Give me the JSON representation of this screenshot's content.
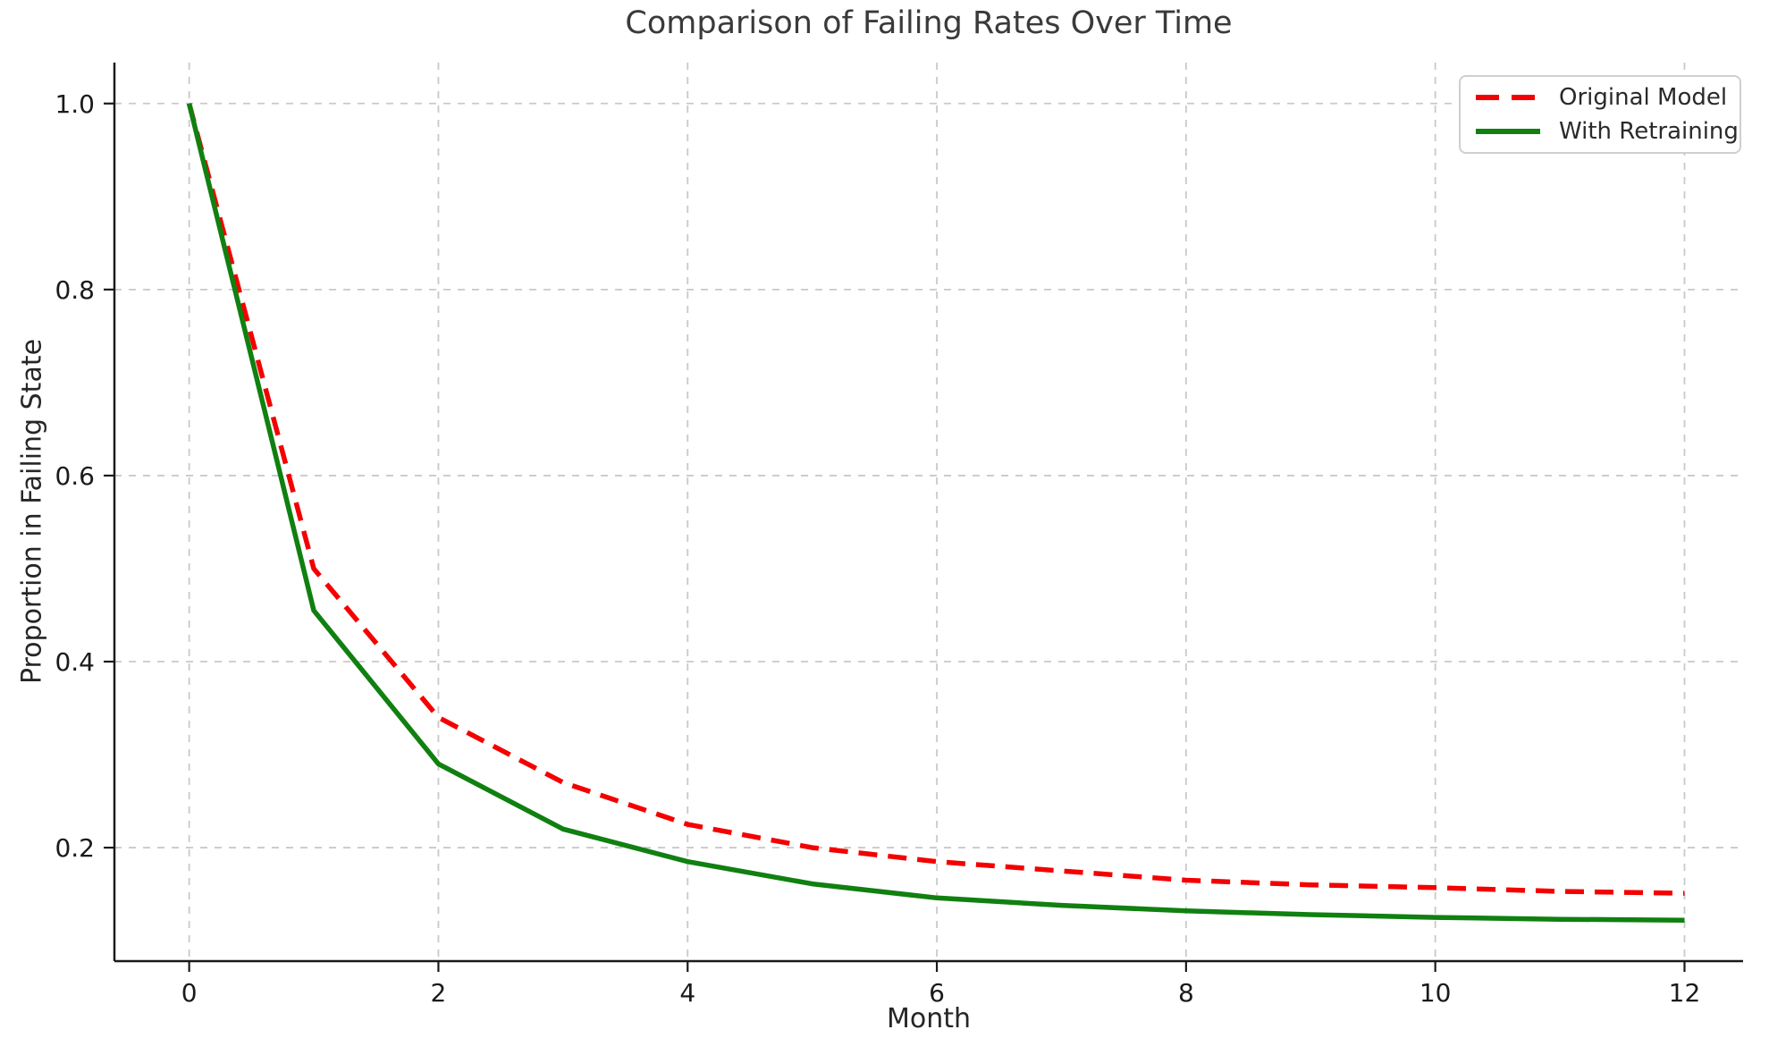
{
  "chart_data": {
    "type": "line",
    "title": "Comparison of Failing Rates Over Time",
    "xlabel": "Month",
    "ylabel": "Proportion in Failing State",
    "x": [
      0,
      1,
      2,
      3,
      4,
      5,
      6,
      7,
      8,
      9,
      10,
      11,
      12
    ],
    "series": [
      {
        "name": "Original Model",
        "color": "#f40000",
        "style": "dashed",
        "values": [
          1.0,
          0.5,
          0.34,
          0.27,
          0.225,
          0.2,
          0.185,
          0.175,
          0.165,
          0.16,
          0.157,
          0.153,
          0.151
        ]
      },
      {
        "name": "With Retraining",
        "color": "#108010",
        "style": "solid",
        "values": [
          1.0,
          0.455,
          0.29,
          0.22,
          0.185,
          0.161,
          0.146,
          0.138,
          0.132,
          0.128,
          0.125,
          0.123,
          0.122
        ]
      }
    ],
    "x_ticks": [
      0,
      2,
      4,
      6,
      8,
      10,
      12
    ],
    "x_tick_labels": [
      "0",
      "2",
      "4",
      "6",
      "8",
      "10",
      "12"
    ],
    "y_ticks": [
      0.2,
      0.4,
      0.6,
      0.8,
      1.0
    ],
    "y_tick_labels": [
      "0.2",
      "0.4",
      "0.6",
      "0.8",
      "1.0"
    ],
    "xlim": [
      -0.6,
      12.47
    ],
    "ylim": [
      0.078,
      1.044
    ],
    "grid": true,
    "grid_color": "#c9c9c9",
    "legend_position": "upper right",
    "text_color": "#1a1a1a",
    "spine_color": "#1a1a1a"
  }
}
